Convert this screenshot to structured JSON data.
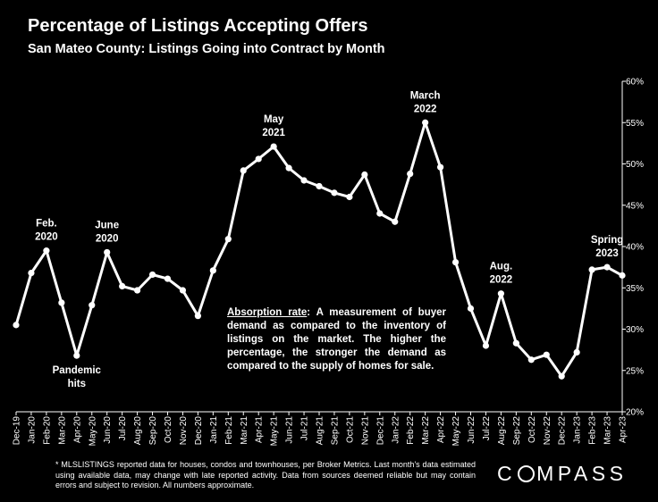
{
  "header": {
    "title": "Percentage of Listings Accepting Offers",
    "subtitle": "San Mateo County: Listings Going into Contract by Month"
  },
  "callout": {
    "lead": "Absorption rate",
    "text": ":  A measurement of buyer demand as compared to the inventory of listings on the market. The higher the percentage, the stronger the demand as compared to the supply of homes for sale."
  },
  "footnote": "* MLSLISTINGS reported data for houses, condos and townhouses, per Broker Metrics. Last month's data estimated using available data, may change with late reported activity. Data from sources deemed reliable but may contain errors and subject to revision. All numbers approximate.",
  "logo": {
    "before": "C",
    "after": "MPASS",
    "ring_icon": "logo-o-ring"
  },
  "colors": {
    "background": "#000000",
    "line": "#ffffff",
    "text": "#ffffff"
  },
  "chart_data": {
    "type": "line",
    "title": "Percentage of Listings Accepting Offers",
    "subtitle": "San Mateo County: Listings Going into Contract by Month",
    "xlabel": "",
    "ylabel": "",
    "y_axis_position": "right",
    "ylim": [
      0.2,
      0.6
    ],
    "yticks": [
      0.2,
      0.25,
      0.3,
      0.35,
      0.4,
      0.45,
      0.5,
      0.55,
      0.6
    ],
    "ytick_labels": [
      "20%",
      "25%",
      "30%",
      "35%",
      "40%",
      "45%",
      "50%",
      "55%",
      "60%"
    ],
    "grid": false,
    "legend": "none",
    "categories": [
      "Dec-19",
      "Jan-20",
      "Feb-20",
      "Mar-20",
      "Apr-20",
      "May-20",
      "Jun-20",
      "Jul-20",
      "Aug-20",
      "Sep-20",
      "Oct-20",
      "Nov-20",
      "Dec-20",
      "Jan-21",
      "Feb-21",
      "Mar-21",
      "Apr-21",
      "May-21",
      "Jun-21",
      "Jul-21",
      "Aug-21",
      "Sep-21",
      "Oct-21",
      "Nov-21",
      "Dec-21",
      "Jan-22",
      "Feb-22",
      "Mar-22",
      "Apr-22",
      "May-22",
      "Jun-22",
      "Jul-22",
      "Aug-22",
      "Sep-22",
      "Oct-22",
      "Nov-22",
      "Dec-22",
      "Jan-23",
      "Feb-23",
      "Mar-23",
      "Apr-23"
    ],
    "values": [
      0.305,
      0.368,
      0.395,
      0.332,
      0.268,
      0.329,
      0.393,
      0.352,
      0.347,
      0.366,
      0.361,
      0.347,
      0.316,
      0.371,
      0.409,
      0.492,
      0.506,
      0.521,
      0.495,
      0.48,
      0.473,
      0.465,
      0.46,
      0.487,
      0.44,
      0.43,
      0.488,
      0.55,
      0.496,
      0.381,
      0.325,
      0.28,
      0.343,
      0.283,
      0.263,
      0.269,
      0.243,
      0.272,
      0.372,
      0.375,
      0.365
    ],
    "annotations": [
      {
        "index": 2,
        "lines": [
          "Feb.",
          "2020"
        ],
        "position": "above"
      },
      {
        "index": 4,
        "lines": [
          "Pandemic",
          "hits"
        ],
        "position": "below"
      },
      {
        "index": 6,
        "lines": [
          "June",
          "2020"
        ],
        "position": "above"
      },
      {
        "index": 17,
        "lines": [
          "May",
          "2021"
        ],
        "position": "above"
      },
      {
        "index": 27,
        "lines": [
          "March",
          "2022"
        ],
        "position": "above"
      },
      {
        "index": 32,
        "lines": [
          "Aug.",
          "2022"
        ],
        "position": "above"
      },
      {
        "index": 39,
        "lines": [
          "Spring",
          "2023"
        ],
        "position": "above"
      }
    ]
  }
}
